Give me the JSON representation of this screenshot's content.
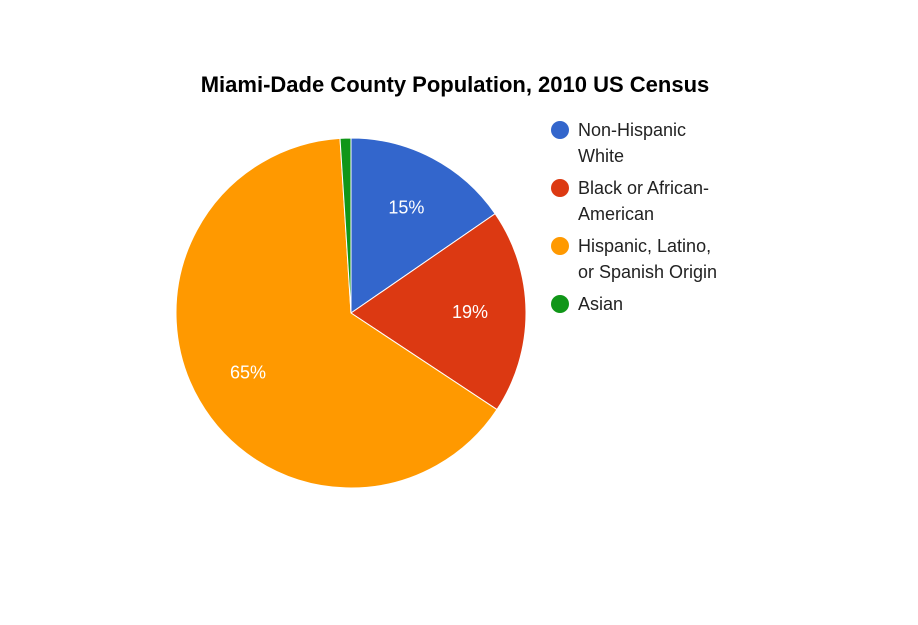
{
  "chart_data": {
    "type": "pie",
    "title": "Miami-Dade County Population, 2010 US Census",
    "categories": [
      "Non-Hispanic White",
      "Black or African-American",
      "Hispanic, Latino, or Spanish Origin",
      "Asian"
    ],
    "legend_lines": [
      [
        "Non-Hispanic",
        "White"
      ],
      [
        "Black or African-",
        "American"
      ],
      [
        "Hispanic, Latino,",
        "or Spanish Origin"
      ],
      [
        "Asian"
      ]
    ],
    "values": [
      15.4,
      18.9,
      64.7,
      1.0
    ],
    "slice_labels": [
      "15%",
      "19%",
      "65%",
      ""
    ],
    "colors": [
      "#3366cc",
      "#dc3912",
      "#ff9900",
      "#109618"
    ],
    "legend_position": "right",
    "start_angle": "12 o'clock",
    "direction": "clockwise"
  }
}
